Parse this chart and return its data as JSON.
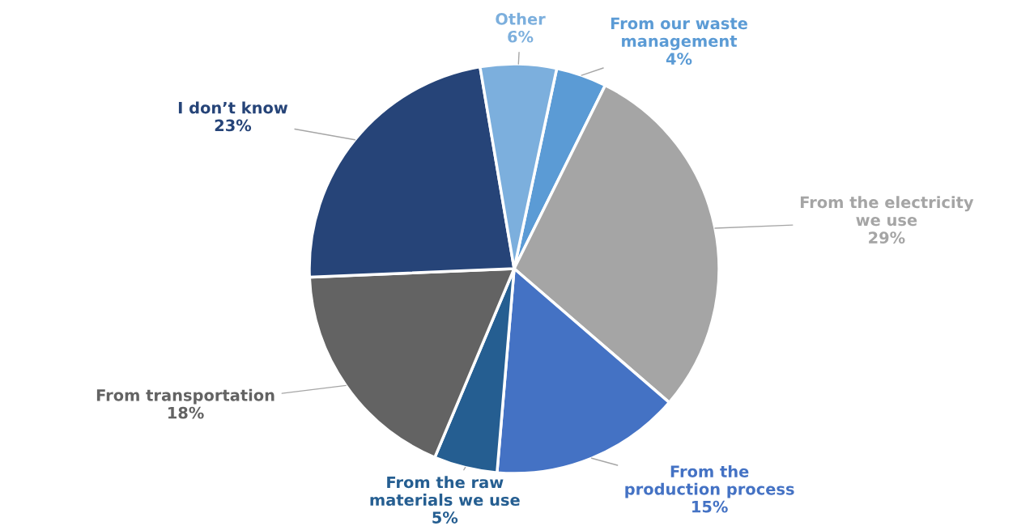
{
  "chart_data": {
    "type": "pie",
    "categories": [
      "From our waste\nmanagement",
      "From the electricity\nwe use",
      "From the\nproduction process",
      "From the raw\nmaterials we use",
      "From transportation",
      "I don’t know",
      "Other"
    ],
    "values": [
      4,
      29,
      15,
      5,
      18,
      23,
      6
    ],
    "value_labels": [
      "4%",
      "29%",
      "15%",
      "5%",
      "18%",
      "23%",
      "6%"
    ],
    "colors": [
      "#5b9bd5",
      "#a5a5a5",
      "#4472c4",
      "#255e91",
      "#636363",
      "#264478",
      "#7cafdd"
    ],
    "legend": false
  }
}
